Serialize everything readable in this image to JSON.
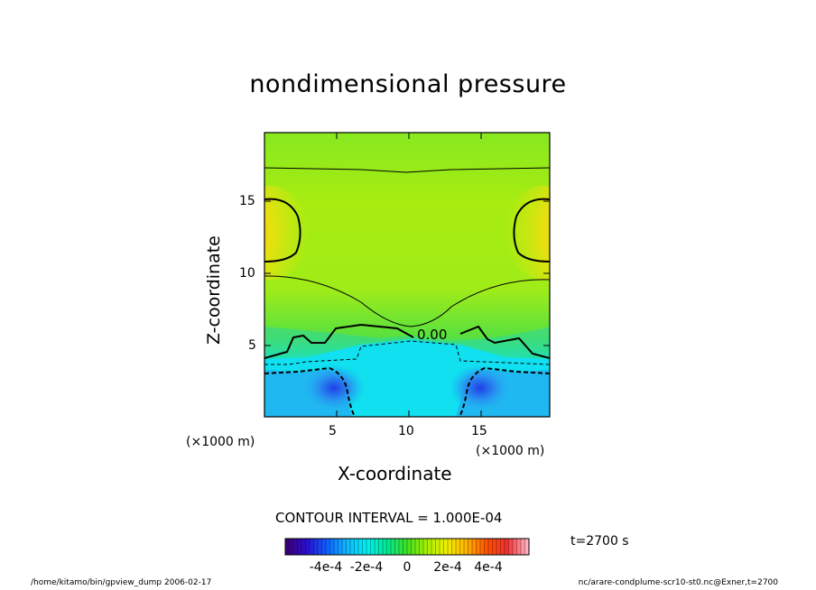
{
  "chart_data": {
    "type": "heatmap",
    "title": "nondimensional pressure",
    "xlabel": "X-coordinate",
    "ylabel": "Z-coordinate",
    "x_unit": "(×1000 m)",
    "y_unit": "(×1000 m)",
    "xlim": [
      0,
      19.6
    ],
    "ylim": [
      0,
      19.5
    ],
    "x_ticks": [
      "5",
      "10",
      "15"
    ],
    "y_ticks": [
      "5",
      "10",
      "15"
    ],
    "contour_interval_text": "CONTOUR INTERVAL = 1.000E-04",
    "contour_label": "0.00",
    "colorbar": {
      "range": [
        -0.0006,
        0.0006
      ],
      "tick_labels": [
        "-4e-4",
        "-2e-4",
        "0",
        "2e-4",
        "4e-4"
      ],
      "colors": [
        "#3a007a",
        "#2a10d0",
        "#1060ff",
        "#10b8ff",
        "#00f0f0",
        "#00e890",
        "#40e020",
        "#a8f000",
        "#f0f000",
        "#ffb000",
        "#ff5000",
        "#f03030",
        "#ffb0c0"
      ]
    },
    "time_label": "t=2700 s",
    "footer_left": "/home/kitamo/bin/gpview_dump  2006-02-17",
    "footer_right": "nc/arare-condplume-scr10-st0.nc@Exner,t=2700"
  }
}
